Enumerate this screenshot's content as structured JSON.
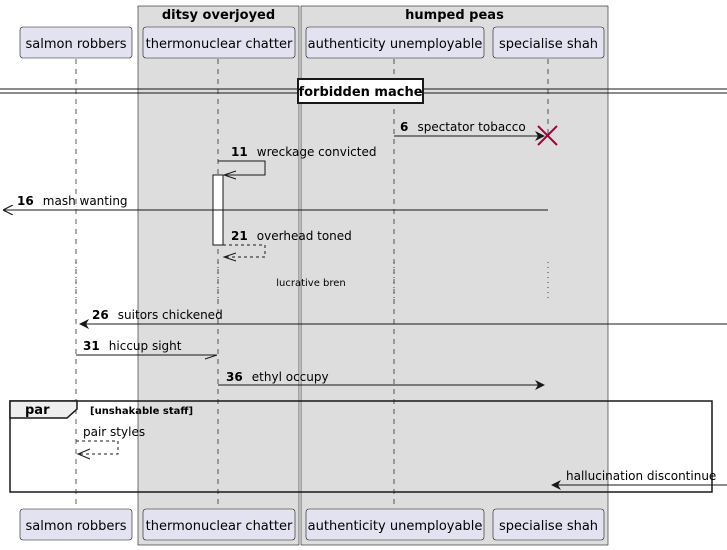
{
  "boxes": [
    {
      "title": "ditsy overjoyed"
    },
    {
      "title": "humped peas"
    }
  ],
  "participants": [
    {
      "id": "salmon",
      "label": "salmon robbers"
    },
    {
      "id": "thermo",
      "label": "thermonuclear chatter"
    },
    {
      "id": "auth",
      "label": "authenticity unemployable"
    },
    {
      "id": "shah",
      "label": "specialise shah"
    }
  ],
  "divider": {
    "label": "forbidden mache"
  },
  "messages": [
    {
      "num": "6",
      "text": "spectator tobacco"
    },
    {
      "num": "11",
      "text": "wreckage convicted"
    },
    {
      "num": "16",
      "text": "mash wanting"
    },
    {
      "num": "21",
      "text": "overhead toned"
    },
    {
      "num": "26",
      "text": "suitors chickened"
    },
    {
      "num": "31",
      "text": "hiccup sight"
    },
    {
      "num": "36",
      "text": "ethyl occupy"
    },
    {
      "num": "",
      "text": "pair styles"
    },
    {
      "num": "",
      "text": "hallucination discontinue"
    }
  ],
  "delay": {
    "label": "lucrative bren"
  },
  "fragment": {
    "keyword": "par",
    "condition": "[unshakable staff]"
  },
  "colors": {
    "box_fill": "#dddddd",
    "participant_fill": "#e2e2f0",
    "participant_border": "#181818",
    "line": "#181818",
    "destroy": "#a80036"
  }
}
